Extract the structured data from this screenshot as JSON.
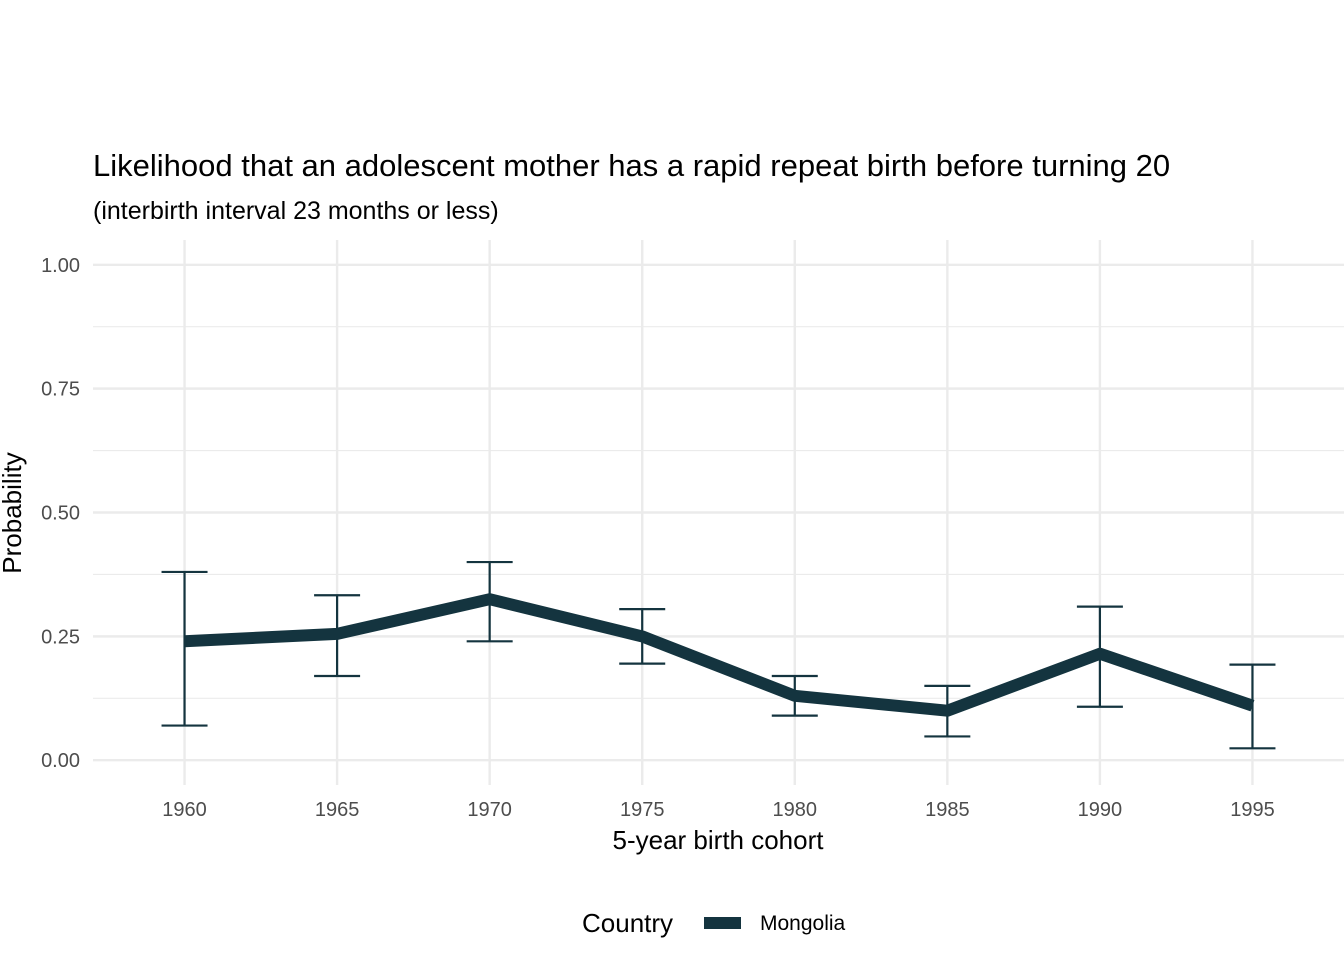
{
  "chart_data": {
    "type": "line",
    "title": "Likelihood that an adolescent mother has a rapid repeat birth before turning 20",
    "subtitle": "(interbirth interval 23 months or less)",
    "xlabel": "5-year birth cohort",
    "ylabel": "Probability",
    "x": [
      1960,
      1965,
      1970,
      1975,
      1980,
      1985,
      1990,
      1995
    ],
    "x_tick_labels": [
      "1960",
      "1965",
      "1970",
      "1975",
      "1980",
      "1985",
      "1990",
      "1995"
    ],
    "y_ticks": [
      0,
      0.25,
      0.5,
      0.75,
      1.0
    ],
    "y_tick_labels": [
      "0.00",
      "0.25",
      "0.50",
      "0.75",
      "1.00"
    ],
    "xlim": [
      1957,
      1998
    ],
    "ylim": [
      0,
      1.0
    ],
    "grid": true,
    "legend": {
      "title": "Country",
      "position": "bottom"
    },
    "series": [
      {
        "name": "Mongolia",
        "color": "#14343f",
        "values": [
          0.24,
          0.255,
          0.325,
          0.25,
          0.13,
          0.1,
          0.215,
          0.11
        ],
        "lower": [
          0.07,
          0.17,
          0.24,
          0.195,
          0.09,
          0.048,
          0.108,
          0.024
        ],
        "upper": [
          0.38,
          0.333,
          0.4,
          0.305,
          0.17,
          0.15,
          0.31,
          0.193
        ]
      }
    ],
    "colors": {
      "background": "#ffffff",
      "grid": "#ebebeb",
      "tick_text": "#4d4d4d",
      "text": "#000000"
    }
  }
}
